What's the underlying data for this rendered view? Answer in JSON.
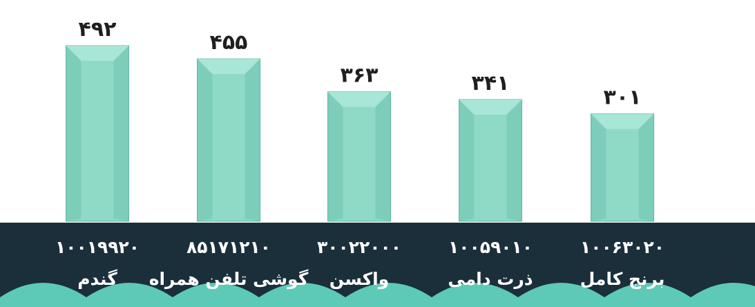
{
  "chart_data": {
    "type": "bar",
    "categories": [
      "گندم",
      "گوشی تلفن همراه",
      "واکسن",
      "ذرت دامی",
      "برنج کامل"
    ],
    "codes": [
      "۱۰۰۱۹۹۲۰",
      "۸۵۱۷۱۲۱۰",
      "۳۰۰۲۲۰۰۰",
      "۱۰۰۵۹۰۱۰",
      "۱۰۰۶۳۰۲۰"
    ],
    "values": [
      492,
      455,
      363,
      341,
      301
    ],
    "value_labels": [
      "۴۹۲",
      "۴۵۵",
      "۳۶۳",
      "۳۴۱",
      "۳۰۱"
    ],
    "title": "",
    "xlabel": "",
    "ylabel": "",
    "ylim": [
      0,
      492
    ],
    "grid": false,
    "legend": "none",
    "colors": {
      "bar_face": "#8fd9c7",
      "bar_side": "#6fc3b1",
      "bar_edge": "#5aae9c",
      "band": "#1b2f3b",
      "wave": "#5ccab6",
      "label_text": "#ffffff",
      "value_text": "#1f1f1f"
    }
  }
}
